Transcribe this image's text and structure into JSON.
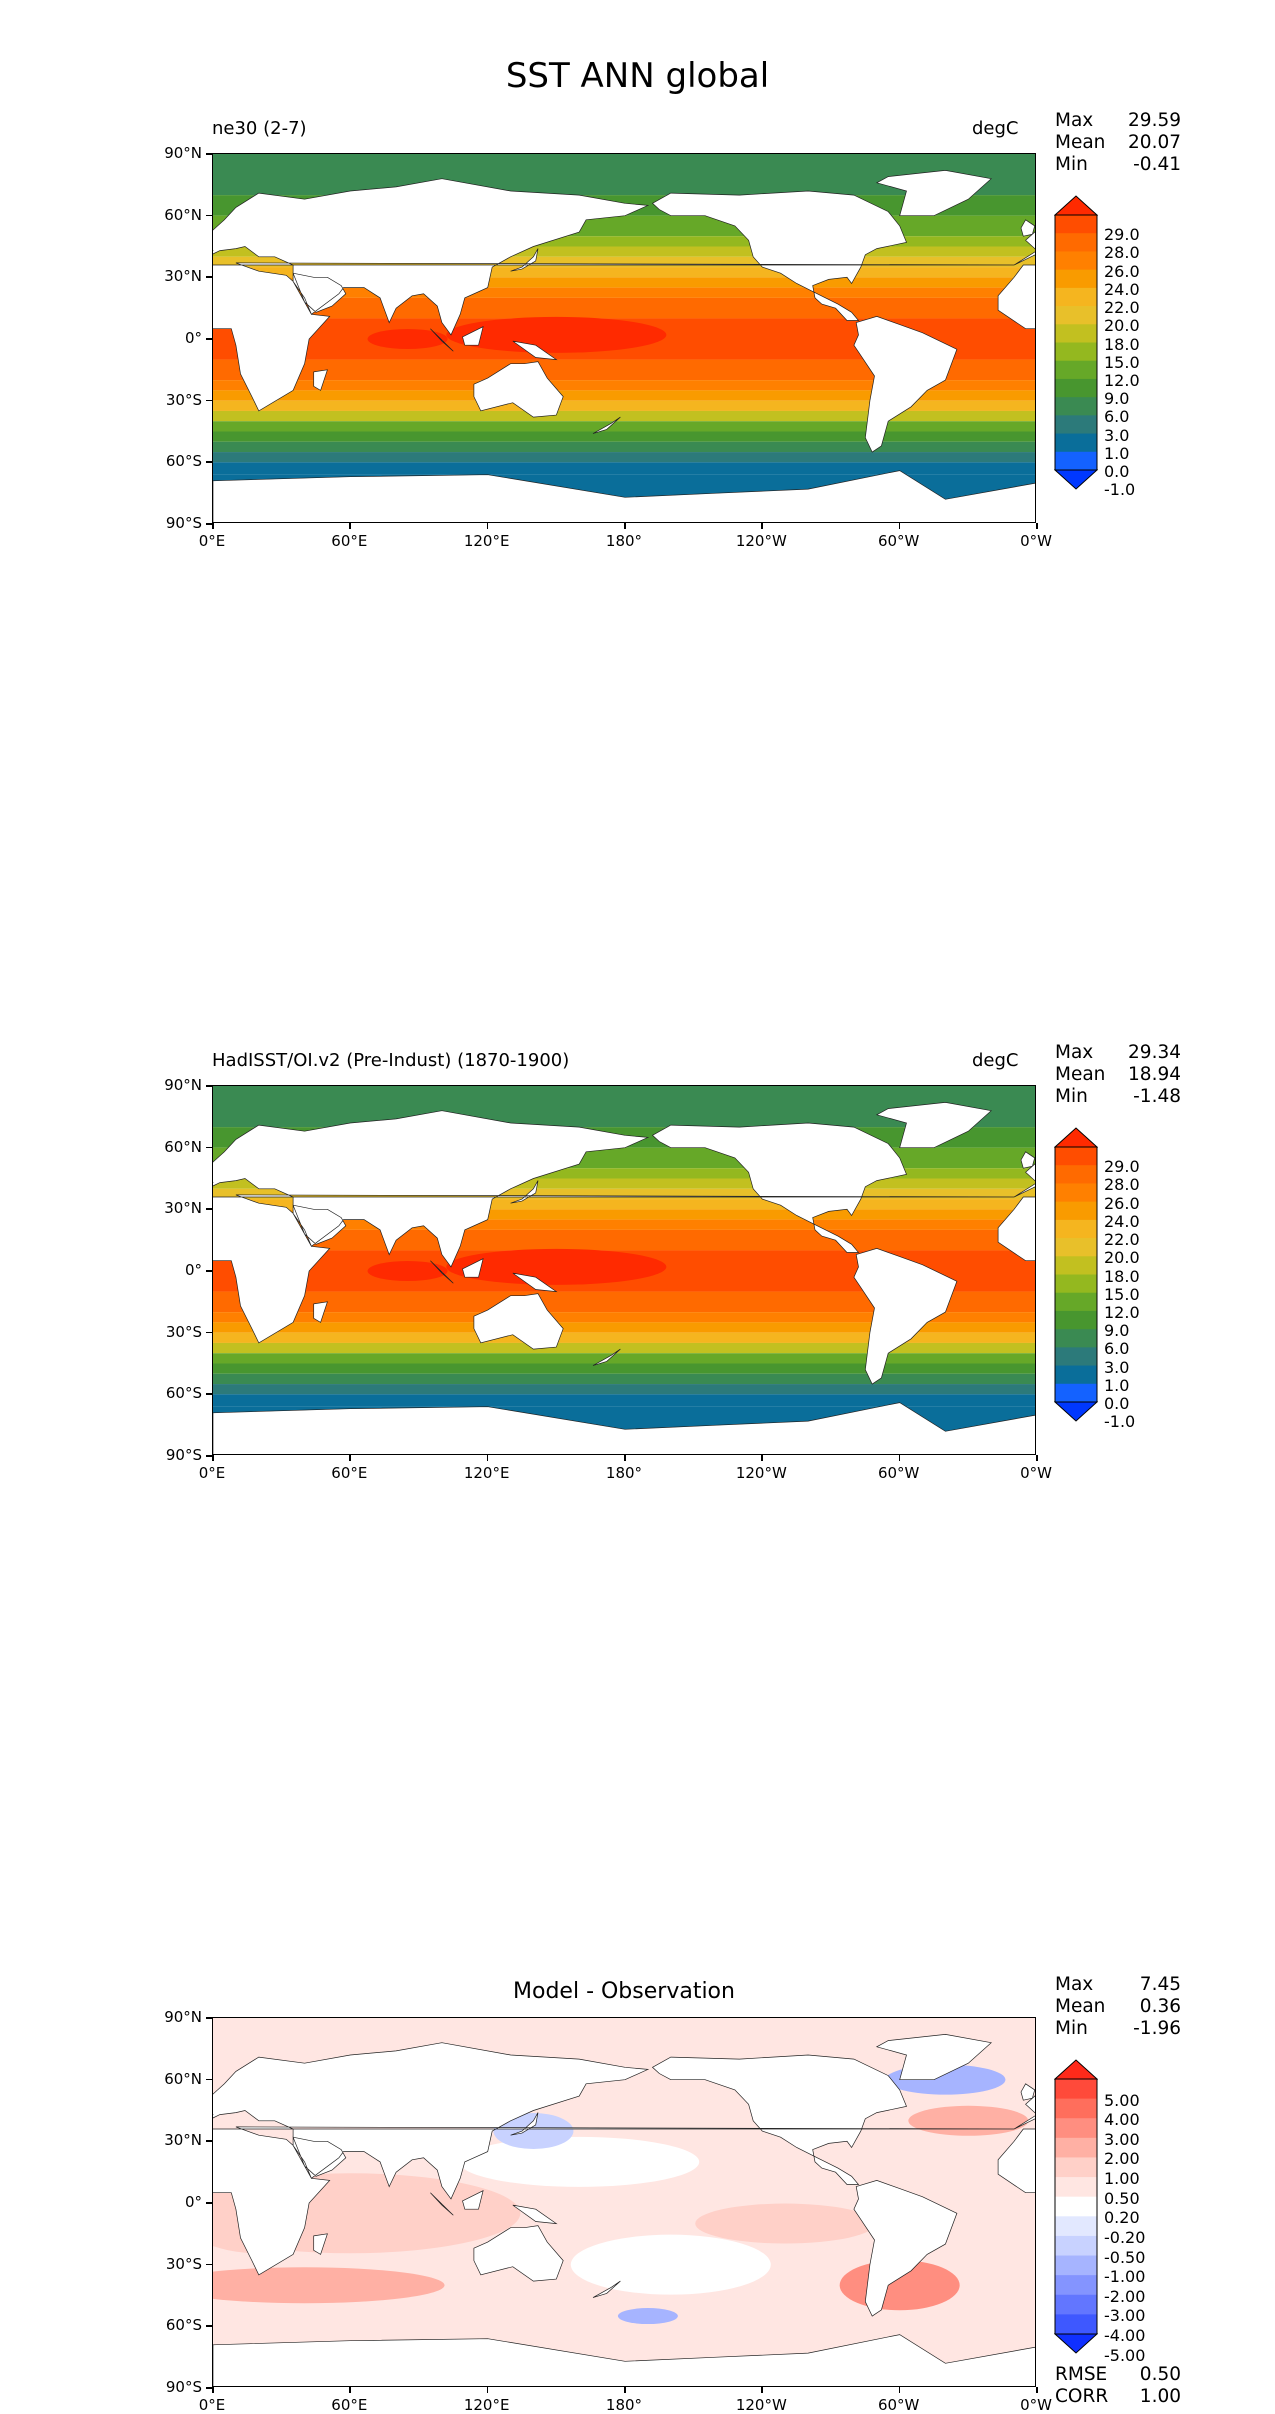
{
  "title": "SST ANN global",
  "chart_data": [
    {
      "type": "heatmap",
      "panel_left_title": "ne30 (2-7)",
      "units": "degC",
      "stats": {
        "max_label": "Max",
        "max": "29.59",
        "mean_label": "Mean",
        "mean": "20.07",
        "min_label": "Min",
        "min": "-0.41"
      },
      "colorbar": {
        "levels": [
          "29.0",
          "28.0",
          "26.0",
          "24.0",
          "22.0",
          "20.0",
          "18.0",
          "15.0",
          "12.0",
          "9.0",
          "6.0",
          "3.0",
          "1.0",
          "0.0",
          "-1.0"
        ],
        "colors": [
          "#ff2a00",
          "#ff4d00",
          "#ff6a00",
          "#ff8000",
          "#f99b00",
          "#f5b51f",
          "#e8c02a",
          "#c2c020",
          "#94b81f",
          "#66a828",
          "#48962f",
          "#3a8a52",
          "#2c7a7a",
          "#0a6e9a",
          "#1462ff",
          "#0038ff"
        ]
      },
      "mean_state": {
        "equator": 28.0,
        "pole": -1.0
      }
    },
    {
      "type": "heatmap",
      "panel_left_title": "HadISST/OI.v2 (Pre-Indust) (1870-1900)",
      "units": "degC",
      "stats": {
        "max_label": "Max",
        "max": "29.34",
        "mean_label": "Mean",
        "mean": "18.94",
        "min_label": "Min",
        "min": "-1.48"
      },
      "colorbar": {
        "levels": [
          "29.0",
          "28.0",
          "26.0",
          "24.0",
          "22.0",
          "20.0",
          "18.0",
          "15.0",
          "12.0",
          "9.0",
          "6.0",
          "3.0",
          "1.0",
          "0.0",
          "-1.0"
        ],
        "colors": [
          "#ff2a00",
          "#ff4d00",
          "#ff6a00",
          "#ff8000",
          "#f99b00",
          "#f5b51f",
          "#e8c02a",
          "#c2c020",
          "#94b81f",
          "#66a828",
          "#48962f",
          "#3a8a52",
          "#2c7a7a",
          "#0a6e9a",
          "#1462ff",
          "#0038ff"
        ]
      },
      "mean_state": {
        "equator": 27.5,
        "pole": -1.5
      }
    },
    {
      "type": "heatmap",
      "panel_center_title": "Model - Observation",
      "stats": {
        "max_label": "Max",
        "max": "7.45",
        "mean_label": "Mean",
        "mean": "0.36",
        "min_label": "Min",
        "min": "-1.96"
      },
      "colorbar": {
        "levels": [
          "5.00",
          "4.00",
          "3.00",
          "2.00",
          "1.00",
          "0.50",
          "0.20",
          "-0.20",
          "-0.50",
          "-1.00",
          "-2.00",
          "-3.00",
          "-4.00",
          "-5.00"
        ],
        "colors": [
          "#ff2a1a",
          "#ff4a3a",
          "#ff6e5c",
          "#ff8e80",
          "#ffb0a4",
          "#ffd0c8",
          "#ffe6e2",
          "#ffffff",
          "#e2e8ff",
          "#c8d2ff",
          "#a6b4ff",
          "#8494ff",
          "#6276ff",
          "#3e58ff",
          "#1030ff"
        ]
      },
      "metrics": {
        "rmse_label": "RMSE",
        "rmse": "0.50",
        "corr_label": "CORR",
        "corr": "1.00"
      }
    }
  ],
  "axes": {
    "lat_ticks": [
      "90°N",
      "60°N",
      "30°N",
      "0°",
      "30°S",
      "60°S",
      "90°S"
    ],
    "lon_ticks": [
      "0°E",
      "60°E",
      "120°E",
      "180°",
      "120°W",
      "60°W",
      "0°W"
    ],
    "lon_range": [
      0,
      360
    ],
    "lat_range": [
      -90,
      90
    ]
  }
}
